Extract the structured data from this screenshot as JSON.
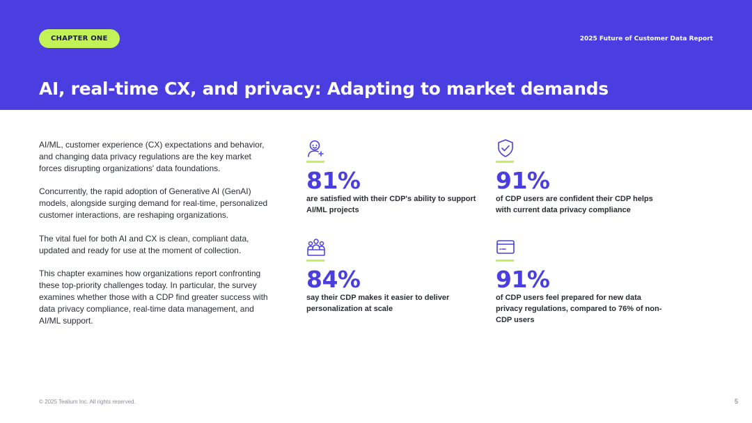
{
  "header": {
    "chapter_label": "CHAPTER ONE",
    "report_title": "2025 Future of Customer Data Report",
    "heading": "AI, real-time CX, and privacy: Adapting to market demands"
  },
  "intro": {
    "paragraphs": [
      "AI/ML, customer experience (CX) expectations and behavior, and changing data privacy regulations are the key market forces disrupting organizations' data foundations.",
      "Concurrently, the rapid adoption of Generative AI (GenAI) models, alongside surging demand for real-time, personalized customer interactions, are reshaping organizations.",
      "The vital fuel for both AI and CX is clean, compliant data, updated and ready for use at the moment of collection.",
      "This chapter examines how organizations report confronting these top-priority challenges today. In particular, the survey examines whether those with a CDP find greater success with data privacy compliance, real-time data management, and AI/ML support."
    ]
  },
  "stats": [
    {
      "icon": "user-bot-icon",
      "value": "81%",
      "description": "are satisfied with their CDP's ability to support AI/ML projects"
    },
    {
      "icon": "shield-check-icon",
      "value": "91%",
      "description": "of CDP users are confident their CDP helps with current data privacy compliance"
    },
    {
      "icon": "group-icon",
      "value": "84%",
      "description": "say their CDP makes it easier to deliver personalization at scale"
    },
    {
      "icon": "card-icon",
      "value": "91%",
      "description": "of CDP users feel prepared for new data privacy regulations, compared to 76% of non-CDP users"
    }
  ],
  "footer": {
    "copyright": "© 2025 Tealium Inc. All rights reserved.",
    "page_number": "5"
  },
  "colors": {
    "brand_purple": "#4a3ee0",
    "accent_lime": "#c2f257"
  }
}
